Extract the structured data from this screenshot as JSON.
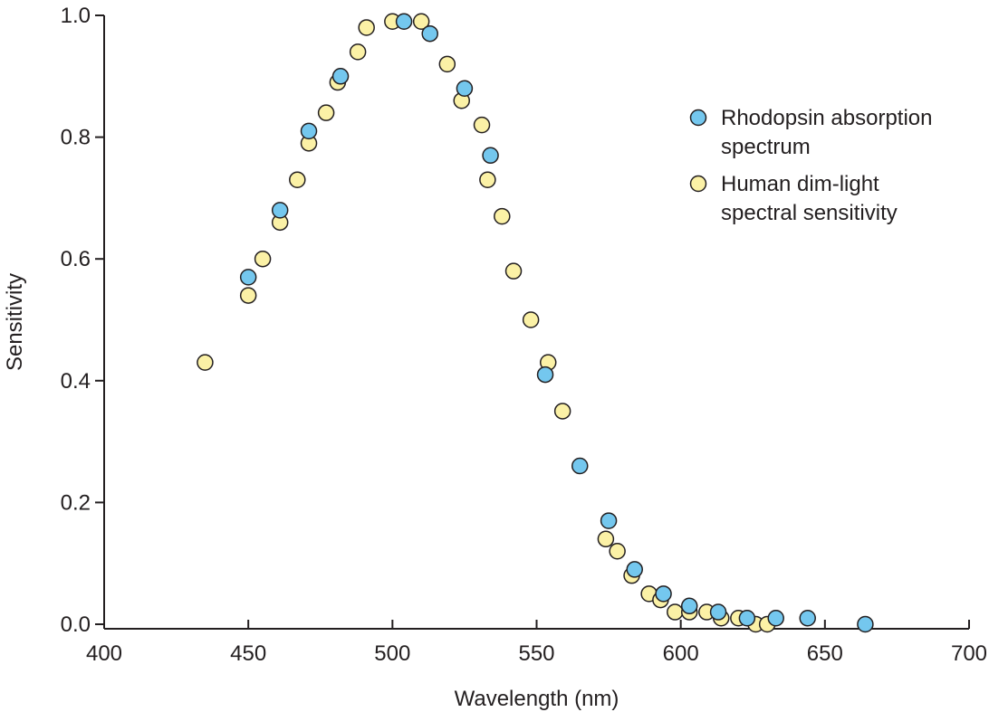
{
  "chart_data": {
    "type": "scatter",
    "title": "",
    "xlabel": "Wavelength (nm)",
    "ylabel": "Sensitivity",
    "xlim": [
      400,
      700
    ],
    "ylim": [
      0,
      1.0
    ],
    "x_ticks": [
      400,
      450,
      500,
      550,
      600,
      650,
      700
    ],
    "x_tick_labels": [
      "400",
      "450",
      "500",
      "550",
      "600",
      "650",
      "700"
    ],
    "y_ticks": [
      0,
      0.2,
      0.4,
      0.6,
      0.8,
      1.0
    ],
    "y_tick_labels": [
      "0.0",
      "0.2",
      "0.4",
      "0.6",
      "0.8",
      "1.0"
    ],
    "grid": false,
    "legend_position": "top-right",
    "series": [
      {
        "name": "Human dim-light spectral sensitivity",
        "legend_lines": [
          "Human dim-light",
          "spectral sensitivity"
        ],
        "color": "#fbf1a6",
        "points": [
          [
            435,
            0.43
          ],
          [
            450,
            0.54
          ],
          [
            455,
            0.6
          ],
          [
            461,
            0.66
          ],
          [
            467,
            0.73
          ],
          [
            471,
            0.79
          ],
          [
            477,
            0.84
          ],
          [
            481,
            0.89
          ],
          [
            488,
            0.94
          ],
          [
            491,
            0.98
          ],
          [
            500,
            0.99
          ],
          [
            510,
            0.99
          ],
          [
            519,
            0.92
          ],
          [
            524,
            0.86
          ],
          [
            531,
            0.82
          ],
          [
            533,
            0.73
          ],
          [
            538,
            0.67
          ],
          [
            542,
            0.58
          ],
          [
            548,
            0.5
          ],
          [
            554,
            0.43
          ],
          [
            559,
            0.35
          ],
          [
            574,
            0.14
          ],
          [
            578,
            0.12
          ],
          [
            583,
            0.08
          ],
          [
            589,
            0.05
          ],
          [
            593,
            0.04
          ],
          [
            598,
            0.02
          ],
          [
            603,
            0.02
          ],
          [
            609,
            0.02
          ],
          [
            614,
            0.01
          ],
          [
            620,
            0.01
          ],
          [
            626,
            0.0
          ],
          [
            630,
            0.0
          ]
        ]
      },
      {
        "name": "Rhodopsin absorption spectrum",
        "legend_lines": [
          "Rhodopsin absorption",
          "spectrum"
        ],
        "color": "#74c7ee",
        "points": [
          [
            450,
            0.57
          ],
          [
            461,
            0.68
          ],
          [
            471,
            0.81
          ],
          [
            482,
            0.9
          ],
          [
            504,
            0.99
          ],
          [
            513,
            0.97
          ],
          [
            525,
            0.88
          ],
          [
            534,
            0.77
          ],
          [
            553,
            0.41
          ],
          [
            565,
            0.26
          ],
          [
            575,
            0.17
          ],
          [
            584,
            0.09
          ],
          [
            594,
            0.05
          ],
          [
            603,
            0.03
          ],
          [
            613,
            0.02
          ],
          [
            623,
            0.01
          ],
          [
            633,
            0.01
          ],
          [
            644,
            0.01
          ],
          [
            664,
            0.0
          ]
        ]
      }
    ],
    "legend_order": [
      "Rhodopsin absorption spectrum",
      "Human dim-light spectral sensitivity"
    ]
  }
}
